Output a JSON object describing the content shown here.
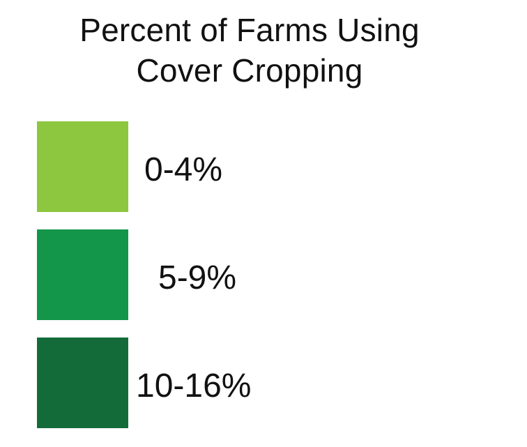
{
  "legend": {
    "title_line1": "Percent of Farms Using",
    "title_line2": "Cover Cropping",
    "items": [
      {
        "label": "0-4%",
        "color": "#8dc63f"
      },
      {
        "label": "5-9%",
        "color": "#13964a"
      },
      {
        "label": "10-16%",
        "color": "#146b3a"
      }
    ]
  }
}
